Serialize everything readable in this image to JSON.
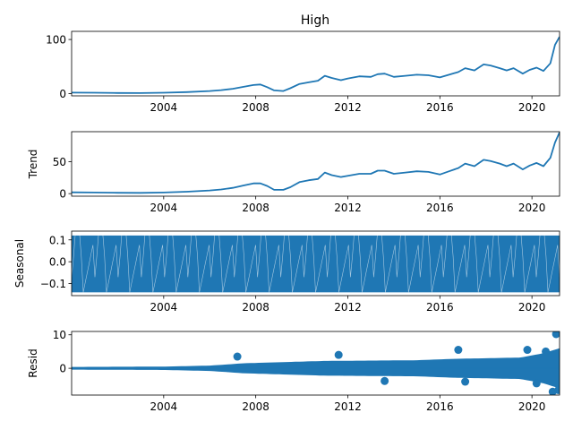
{
  "figure_title": "High",
  "series_color": "#1f77b4",
  "chart_data": [
    {
      "type": "line",
      "title": "High",
      "ylabel": "",
      "xlim": [
        2000.0,
        2021.2
      ],
      "ylim": [
        -4,
        115
      ],
      "x_ticks": [
        2004,
        2008,
        2012,
        2016,
        2020
      ],
      "x_tick_labels": [
        "2004",
        "2008",
        "2012",
        "2016",
        "2020"
      ],
      "y_ticks": [
        0,
        100
      ],
      "y_tick_labels": [
        "0",
        "100"
      ],
      "x": [
        2000.0,
        2001.0,
        2002.0,
        2003.0,
        2004.0,
        2005.0,
        2006.0,
        2006.5,
        2007.0,
        2007.5,
        2007.9,
        2008.2,
        2008.5,
        2008.8,
        2009.2,
        2009.5,
        2009.9,
        2010.3,
        2010.7,
        2011.0,
        2011.3,
        2011.7,
        2012.0,
        2012.5,
        2013.0,
        2013.3,
        2013.6,
        2014.0,
        2014.5,
        2015.0,
        2015.5,
        2016.0,
        2016.4,
        2016.8,
        2017.1,
        2017.5,
        2017.9,
        2018.2,
        2018.6,
        2018.9,
        2019.2,
        2019.6,
        2019.9,
        2020.2,
        2020.5,
        2020.8,
        2021.0,
        2021.2
      ],
      "y": [
        2,
        1.8,
        1.3,
        1.2,
        1.8,
        3,
        5,
        6.5,
        9,
        13,
        16,
        17,
        12,
        6,
        5,
        10,
        18,
        21,
        24,
        33,
        29,
        25,
        28,
        32,
        31,
        36,
        37,
        31,
        33,
        35,
        34,
        30,
        35,
        40,
        47,
        43,
        54,
        52,
        47,
        43,
        47,
        37,
        44,
        48,
        42,
        56,
        90,
        105
      ]
    },
    {
      "type": "line",
      "title": "",
      "ylabel": "Trend",
      "xlim": [
        2000.0,
        2021.2
      ],
      "ylim": [
        -4,
        97
      ],
      "x_ticks": [
        2004,
        2008,
        2012,
        2016,
        2020
      ],
      "x_tick_labels": [
        "2004",
        "2008",
        "2012",
        "2016",
        "2020"
      ],
      "y_ticks": [
        0,
        50
      ],
      "y_tick_labels": [
        "0",
        "50"
      ],
      "x": [
        2000.0,
        2001.0,
        2002.0,
        2003.0,
        2004.0,
        2005.0,
        2006.0,
        2006.5,
        2007.0,
        2007.5,
        2007.9,
        2008.2,
        2008.5,
        2008.8,
        2009.2,
        2009.5,
        2009.9,
        2010.3,
        2010.7,
        2011.0,
        2011.3,
        2011.7,
        2012.0,
        2012.5,
        2013.0,
        2013.3,
        2013.6,
        2014.0,
        2014.5,
        2015.0,
        2015.5,
        2016.0,
        2016.4,
        2016.8,
        2017.1,
        2017.5,
        2017.9,
        2018.2,
        2018.6,
        2018.9,
        2019.2,
        2019.6,
        2019.9,
        2020.2,
        2020.5,
        2020.8,
        2021.0,
        2021.2
      ],
      "y": [
        2,
        1.8,
        1.3,
        1.2,
        1.8,
        3,
        5,
        6.5,
        9,
        13,
        16,
        16,
        12,
        6,
        6,
        10,
        18,
        21,
        23,
        33,
        29,
        26,
        28,
        31,
        31,
        36,
        36,
        31,
        33,
        35,
        34,
        30,
        35,
        40,
        47,
        43,
        53,
        51,
        47,
        43,
        47,
        38,
        44,
        48,
        43,
        56,
        80,
        96
      ]
    },
    {
      "type": "area",
      "title": "",
      "ylabel": "Seasonal",
      "xlim": [
        2000.0,
        2021.2
      ],
      "ylim": [
        -0.155,
        0.14
      ],
      "x_ticks": [
        2004,
        2008,
        2012,
        2016,
        2020
      ],
      "x_tick_labels": [
        "2004",
        "2008",
        "2012",
        "2016",
        "2020"
      ],
      "y_ticks": [
        0.1,
        0.0,
        -0.1
      ],
      "y_tick_labels": [
        "0.1",
        "0.0",
        "−0.1"
      ],
      "seasonal_min": -0.14,
      "seasonal_max": 0.12,
      "cycles": 21
    },
    {
      "type": "scatter",
      "title": "",
      "ylabel": "Resid",
      "xlim": [
        2000.0,
        2021.2
      ],
      "ylim": [
        -8,
        11
      ],
      "x_ticks": [
        2004,
        2008,
        2012,
        2016,
        2020
      ],
      "x_tick_labels": [
        "2004",
        "2008",
        "2012",
        "2016",
        "2020"
      ],
      "y_ticks": [
        10,
        0
      ],
      "y_tick_labels": [
        "10",
        "0"
      ],
      "band_x": [
        2000.0,
        2004.0,
        2006.0,
        2007.5,
        2009.0,
        2011.0,
        2013.0,
        2015.0,
        2016.5,
        2018.0,
        2019.5,
        2020.5,
        2021.2
      ],
      "band_amp": [
        0.4,
        0.5,
        0.8,
        1.5,
        1.8,
        2.2,
        2.3,
        2.4,
        2.8,
        3.0,
        3.2,
        4.5,
        6.0
      ],
      "outliers_x": [
        2007.2,
        2011.6,
        2013.6,
        2016.8,
        2017.1,
        2019.8,
        2020.2,
        2020.6,
        2020.9,
        2021.05,
        2021.15
      ],
      "outliers_y": [
        3.5,
        4,
        -3.8,
        5.5,
        -4,
        5.5,
        -4.5,
        5,
        -7,
        10.2,
        -6.5
      ]
    }
  ]
}
